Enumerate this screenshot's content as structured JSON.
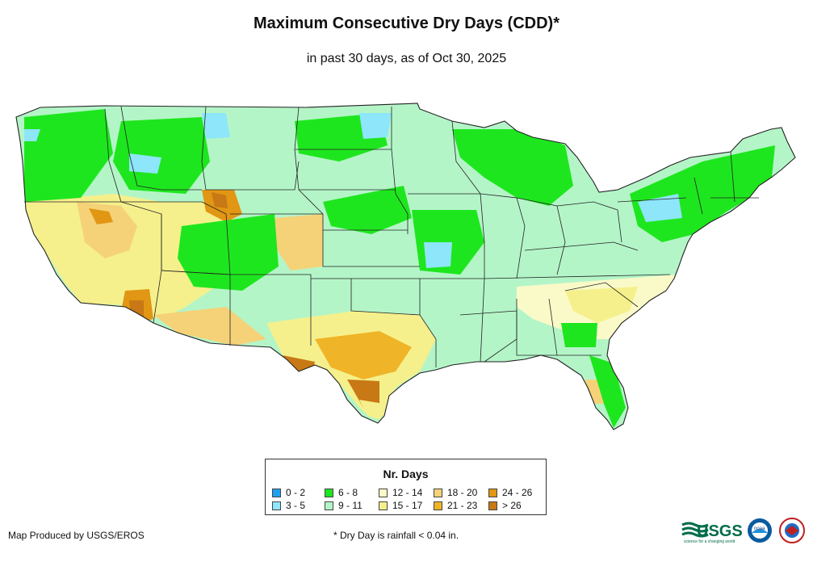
{
  "title": "Maximum Consecutive Dry Days (CDD)*",
  "subtitle": "in past 30 days, as of Oct 30, 2025",
  "legend": {
    "title": "Nr. Days",
    "items": [
      {
        "label": "0 - 2",
        "color": "#1ea0f0"
      },
      {
        "label": "3 - 5",
        "color": "#8ee6fa"
      },
      {
        "label": "6 - 8",
        "color": "#1ee61e"
      },
      {
        "label": "9 - 11",
        "color": "#b4f5c8"
      },
      {
        "label": "12 - 14",
        "color": "#fafac8"
      },
      {
        "label": "15 - 17",
        "color": "#f5f08c"
      },
      {
        "label": "18 - 20",
        "color": "#f5d278"
      },
      {
        "label": "21 - 23",
        "color": "#f0b428"
      },
      {
        "label": "24 - 26",
        "color": "#e19614"
      },
      {
        "label": "> 26",
        "color": "#c87814"
      }
    ]
  },
  "footer": {
    "credit": "Map Produced by USGS/EROS",
    "note": "* Dry Day is rainfall < 0.04 in."
  },
  "logos": {
    "usgs_text": "USGS",
    "usgs_tagline": "science for a changing world",
    "noaa_text": "noaa"
  }
}
